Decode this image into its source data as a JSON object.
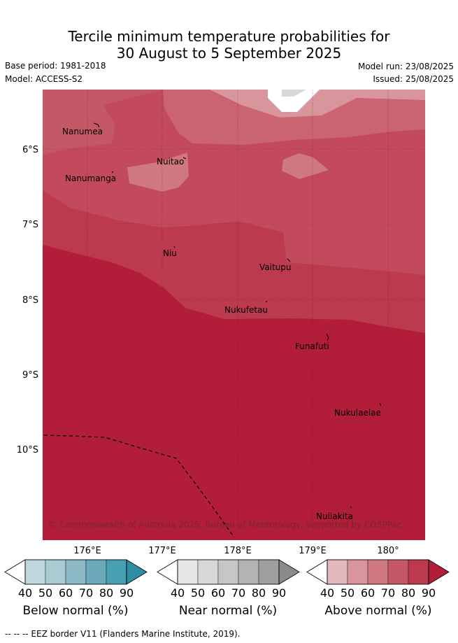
{
  "title_line1": "Tercile minimum temperature probabilities for",
  "title_line2": "30 August to 5 September 2025",
  "base_period": "Base period: 1981-2018",
  "model": "Model: ACCESS-S2",
  "model_run": "Model run: 23/08/2025",
  "issued": "Issued: 25/08/2025",
  "lat_labels": [
    "6°S",
    "7°S",
    "8°S",
    "9°S",
    "10°S"
  ],
  "lon_labels": [
    "176°E",
    "177°E",
    "178°E",
    "179°E",
    "180°"
  ],
  "places": {
    "nanumea": "Nanumea",
    "nuitao": "Nuitao",
    "nanumanga": "Nanumanga",
    "niu": "Niu",
    "vaitupu": "Vaitupu",
    "nukufetau": "Nukufetau",
    "funafuti": "Funafuti",
    "nukulaelae": "Nukulaelae",
    "nuilakita": "Nuilakita"
  },
  "copyright": "© Commonwealth of Australia 2025, Bureau of Meteorology, supported by COSPPac",
  "colorbars": {
    "below": {
      "title": "Below normal (%)",
      "ticks": [
        "40",
        "50",
        "60",
        "70",
        "80",
        "90"
      ],
      "colors": [
        "#c0d7de",
        "#a9cbd2",
        "#8bb9c6",
        "#6aa9b9",
        "#47a0b2",
        "#2c8da3"
      ]
    },
    "near": {
      "title": "Near normal (%)",
      "ticks": [
        "40",
        "50",
        "60",
        "70",
        "80",
        "90"
      ],
      "colors": [
        "#e6e6e6",
        "#d7d7d7",
        "#c6c6c6",
        "#b3b3b3",
        "#9f9f9f",
        "#8a8a8a"
      ]
    },
    "above": {
      "title": "Above normal (%)",
      "ticks": [
        "40",
        "50",
        "60",
        "70",
        "80",
        "90"
      ],
      "colors": [
        "#e2b8bf",
        "#d8959c",
        "#cf7880",
        "#c55866",
        "#bb3a4e",
        "#b21e3a"
      ]
    }
  },
  "footnote": "--  --  -- EEZ border V11 (Flanders Marine Institute, 2019)."
}
